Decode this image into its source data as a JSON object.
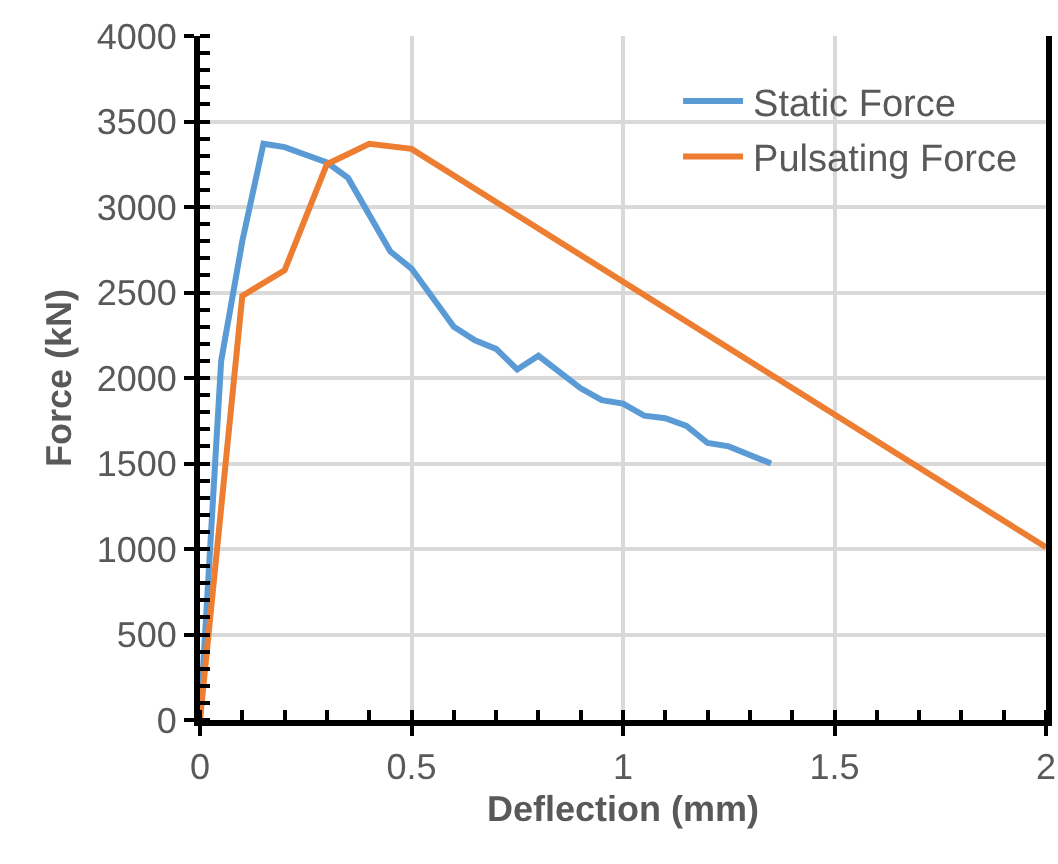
{
  "chart_data": {
    "type": "line",
    "xlabel": "Deflection (mm)",
    "ylabel": "Force (kN)",
    "xlim": [
      0,
      2
    ],
    "xticks": [
      0,
      0.5,
      1,
      1.5,
      2
    ],
    "ylim": [
      0,
      4000
    ],
    "yticks": [
      0,
      500,
      1000,
      1500,
      2000,
      2500,
      3000,
      3500,
      4000
    ],
    "grid": true,
    "legend": "top right",
    "line_style": "solid",
    "marker": "none",
    "series": [
      {
        "name": "Static Force",
        "color": "#5b9bd5",
        "x": [
          0,
          0.05,
          0.1,
          0.15,
          0.2,
          0.3,
          0.35,
          0.45,
          0.5,
          0.6,
          0.65,
          0.7,
          0.75,
          0.8,
          0.9,
          0.95,
          1.0,
          1.05,
          1.1,
          1.15,
          1.2,
          1.25,
          1.35
        ],
        "values": [
          0,
          2100,
          2800,
          3370,
          3350,
          3260,
          3170,
          2740,
          2640,
          2300,
          2220,
          2170,
          2050,
          2130,
          1940,
          1870,
          1850,
          1780,
          1765,
          1720,
          1620,
          1600,
          1500
        ]
      },
      {
        "name": "Pulsating Force",
        "color": "#ed7d31",
        "x": [
          0,
          0.1,
          0.2,
          0.3,
          0.4,
          0.5,
          2
        ],
        "values": [
          0,
          2480,
          2630,
          3250,
          3370,
          3340,
          1010
        ]
      }
    ]
  }
}
